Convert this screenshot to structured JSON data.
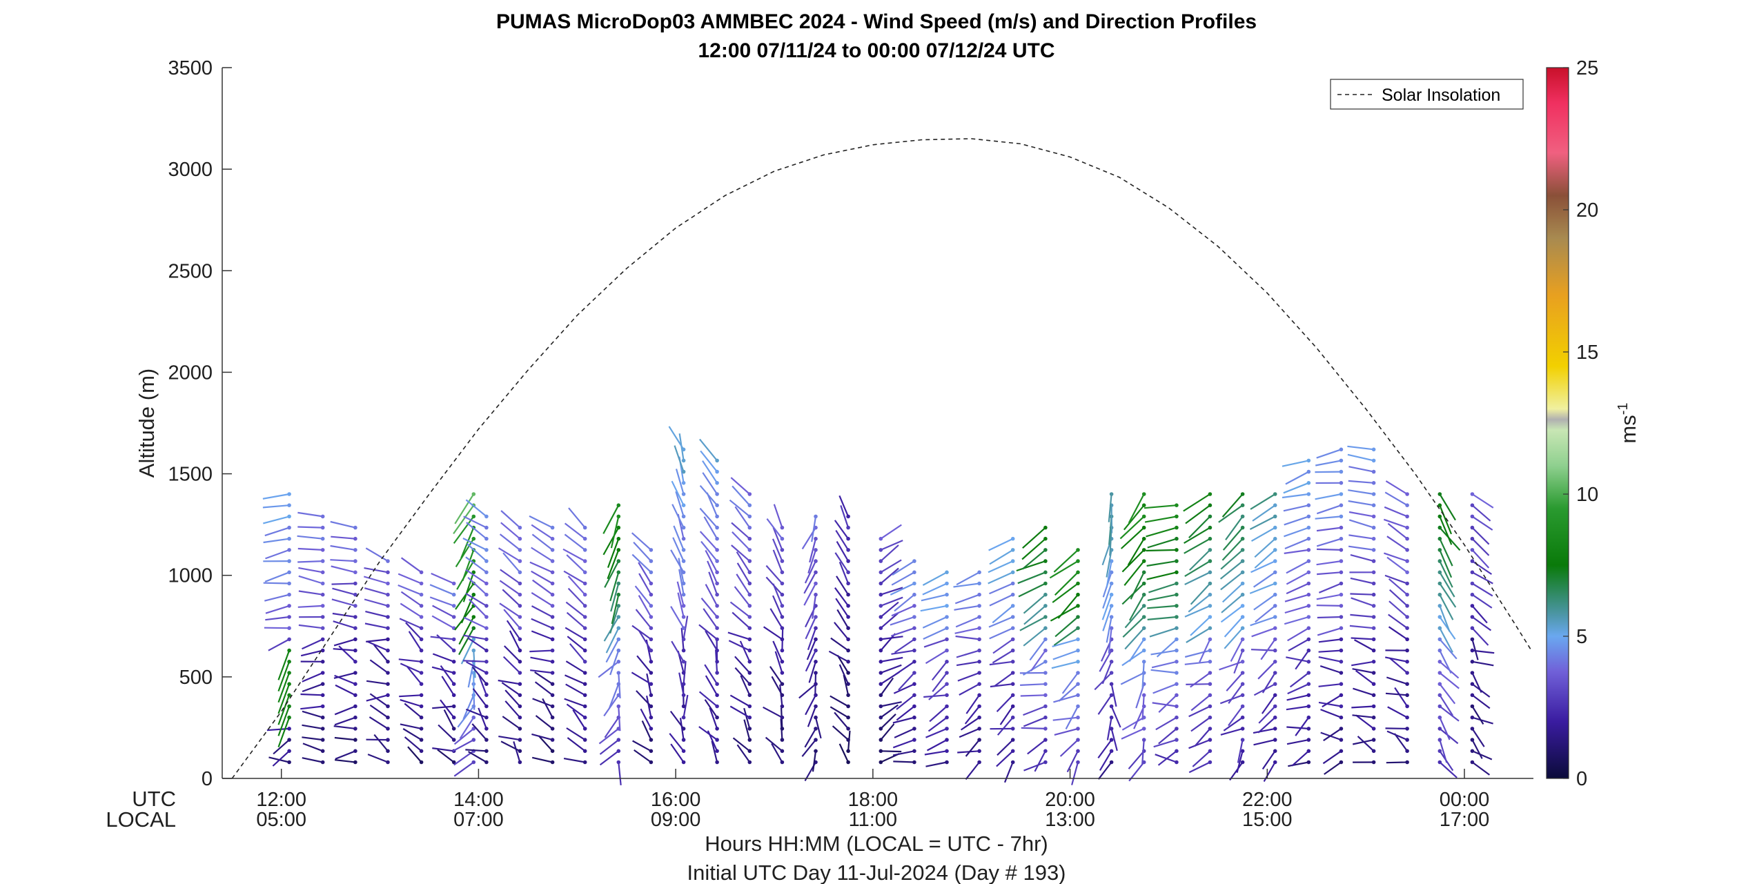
{
  "chart_data": {
    "type": "wind-barb-profile",
    "title": "PUMAS MicroDop03 AMMBEC 2024 - Wind Speed (m/s) and Direction Profiles",
    "subtitle": "12:00 07/11/24 to 00:00 07/12/24  UTC",
    "ylabel": "Altitude (m)",
    "xlabel": "Hours HH:MM  (LOCAL = UTC - 7hr)",
    "xlabel2": "Initial UTC Day 11-Jul-2024 (Day # 193)",
    "row_label_utc": "UTC",
    "row_label_local": "LOCAL",
    "xlim_hours": [
      11.4,
      24.7
    ],
    "ylim": [
      0,
      3500
    ],
    "yticks": [
      "0",
      "500",
      "1000",
      "1500",
      "2000",
      "2500",
      "3000",
      "3500"
    ],
    "xticks": [
      {
        "hour": 12,
        "utc": "12:00",
        "local": "05:00"
      },
      {
        "hour": 14,
        "utc": "14:00",
        "local": "07:00"
      },
      {
        "hour": 16,
        "utc": "16:00",
        "local": "09:00"
      },
      {
        "hour": 18,
        "utc": "18:00",
        "local": "11:00"
      },
      {
        "hour": 20,
        "utc": "20:00",
        "local": "13:00"
      },
      {
        "hour": 22,
        "utc": "22:00",
        "local": "15:00"
      },
      {
        "hour": 24,
        "utc": "00:00",
        "local": "17:00"
      }
    ],
    "colorbar": {
      "label": "ms-1",
      "range": [
        0,
        25
      ],
      "ticks": [
        "0",
        "5",
        "10",
        "15",
        "20",
        "25"
      ]
    },
    "legend": {
      "entry": "Solar Insolation",
      "position": "top-right",
      "style": "dashed"
    },
    "solar_insolation": [
      [
        11.5,
        0
      ],
      [
        12.0,
        330
      ],
      [
        12.5,
        700
      ],
      [
        13.0,
        1070
      ],
      [
        13.5,
        1400
      ],
      [
        14.0,
        1720
      ],
      [
        14.5,
        2010
      ],
      [
        15.0,
        2280
      ],
      [
        15.5,
        2510
      ],
      [
        16.0,
        2710
      ],
      [
        16.5,
        2870
      ],
      [
        17.0,
        2990
      ],
      [
        17.5,
        3070
      ],
      [
        18.0,
        3120
      ],
      [
        18.5,
        3145
      ],
      [
        19.0,
        3150
      ],
      [
        19.5,
        3125
      ],
      [
        20.0,
        3060
      ],
      [
        20.5,
        2960
      ],
      [
        21.0,
        2810
      ],
      [
        21.5,
        2620
      ],
      [
        22.0,
        2390
      ],
      [
        22.5,
        2120
      ],
      [
        23.0,
        1820
      ],
      [
        23.5,
        1500
      ],
      [
        24.0,
        1150
      ],
      [
        24.5,
        770
      ],
      [
        24.68,
        630
      ]
    ],
    "profiles": [
      {
        "t": 12.08,
        "top": 1400,
        "spd": 4.0,
        "dir": 260,
        "low": [
          {
            "h": 450,
            "spd": 8,
            "dir": 200
          }
        ]
      },
      {
        "t": 12.42,
        "top": 1300,
        "spd": 3.5,
        "dir": 275
      },
      {
        "t": 12.75,
        "top": 1250,
        "spd": 3.2,
        "dir": 280
      },
      {
        "t": 13.08,
        "top": 1100,
        "spd": 3.0,
        "dir": 290
      },
      {
        "t": 13.42,
        "top": 1050,
        "spd": 3.2,
        "dir": 300
      },
      {
        "t": 13.75,
        "top": 1000,
        "spd": 3.5,
        "dir": 300
      },
      {
        "t": 13.95,
        "top": 1400,
        "spd": 8.5,
        "dir": 210
      },
      {
        "t": 14.08,
        "top": 1300,
        "spd": 3.8,
        "dir": 305
      },
      {
        "t": 14.42,
        "top": 1250,
        "spd": 3.5,
        "dir": 310
      },
      {
        "t": 14.75,
        "top": 1250,
        "spd": 3.2,
        "dir": 300
      },
      {
        "t": 15.08,
        "top": 1250,
        "spd": 3.8,
        "dir": 310
      },
      {
        "t": 15.42,
        "top": 1350,
        "spd": 7.0,
        "dir": 200
      },
      {
        "t": 15.75,
        "top": 1150,
        "spd": 3.5,
        "dir": 320
      },
      {
        "t": 16.08,
        "top": 1650,
        "spd": 4.5,
        "dir": 340
      },
      {
        "t": 16.42,
        "top": 1600,
        "spd": 4.2,
        "dir": 330
      },
      {
        "t": 16.75,
        "top": 1450,
        "spd": 3.5,
        "dir": 320
      },
      {
        "t": 17.08,
        "top": 1250,
        "spd": 3.0,
        "dir": 330
      },
      {
        "t": 17.42,
        "top": 1300,
        "spd": 3.2,
        "dir": 200
      },
      {
        "t": 17.75,
        "top": 1300,
        "spd": 2.2,
        "dir": 330
      },
      {
        "t": 18.08,
        "top": 1200,
        "spd": 2.8,
        "dir": 60
      },
      {
        "t": 18.42,
        "top": 1100,
        "spd": 4.0,
        "dir": 240
      },
      {
        "t": 18.75,
        "top": 1050,
        "spd": 4.5,
        "dir": 250
      },
      {
        "t": 19.08,
        "top": 1050,
        "spd": 3.8,
        "dir": 250
      },
      {
        "t": 19.42,
        "top": 1200,
        "spd": 4.5,
        "dir": 235
      },
      {
        "t": 19.75,
        "top": 1250,
        "spd": 6.5,
        "dir": 240
      },
      {
        "t": 20.08,
        "top": 1150,
        "spd": 7.5,
        "dir": 230
      },
      {
        "t": 20.42,
        "top": 1400,
        "spd": 5.0,
        "dir": 190
      },
      {
        "t": 20.75,
        "top": 1450,
        "spd": 7.5,
        "dir": 215
      },
      {
        "t": 21.08,
        "top": 1350,
        "spd": 7.0,
        "dir": 260
      },
      {
        "t": 21.42,
        "top": 1450,
        "spd": 6.5,
        "dir": 235
      },
      {
        "t": 21.75,
        "top": 1450,
        "spd": 6.0,
        "dir": 225
      },
      {
        "t": 22.08,
        "top": 1450,
        "spd": 5.0,
        "dir": 240
      },
      {
        "t": 22.42,
        "top": 1600,
        "spd": 4.2,
        "dir": 250
      },
      {
        "t": 22.75,
        "top": 1650,
        "spd": 4.0,
        "dir": 260
      },
      {
        "t": 23.08,
        "top": 1650,
        "spd": 3.8,
        "dir": 280
      },
      {
        "t": 23.42,
        "top": 1450,
        "spd": 3.5,
        "dir": 300
      },
      {
        "t": 23.75,
        "top": 1400,
        "spd": 6.5,
        "dir": 150
      },
      {
        "t": 24.08,
        "top": 1450,
        "spd": 2.8,
        "dir": 130
      }
    ]
  }
}
